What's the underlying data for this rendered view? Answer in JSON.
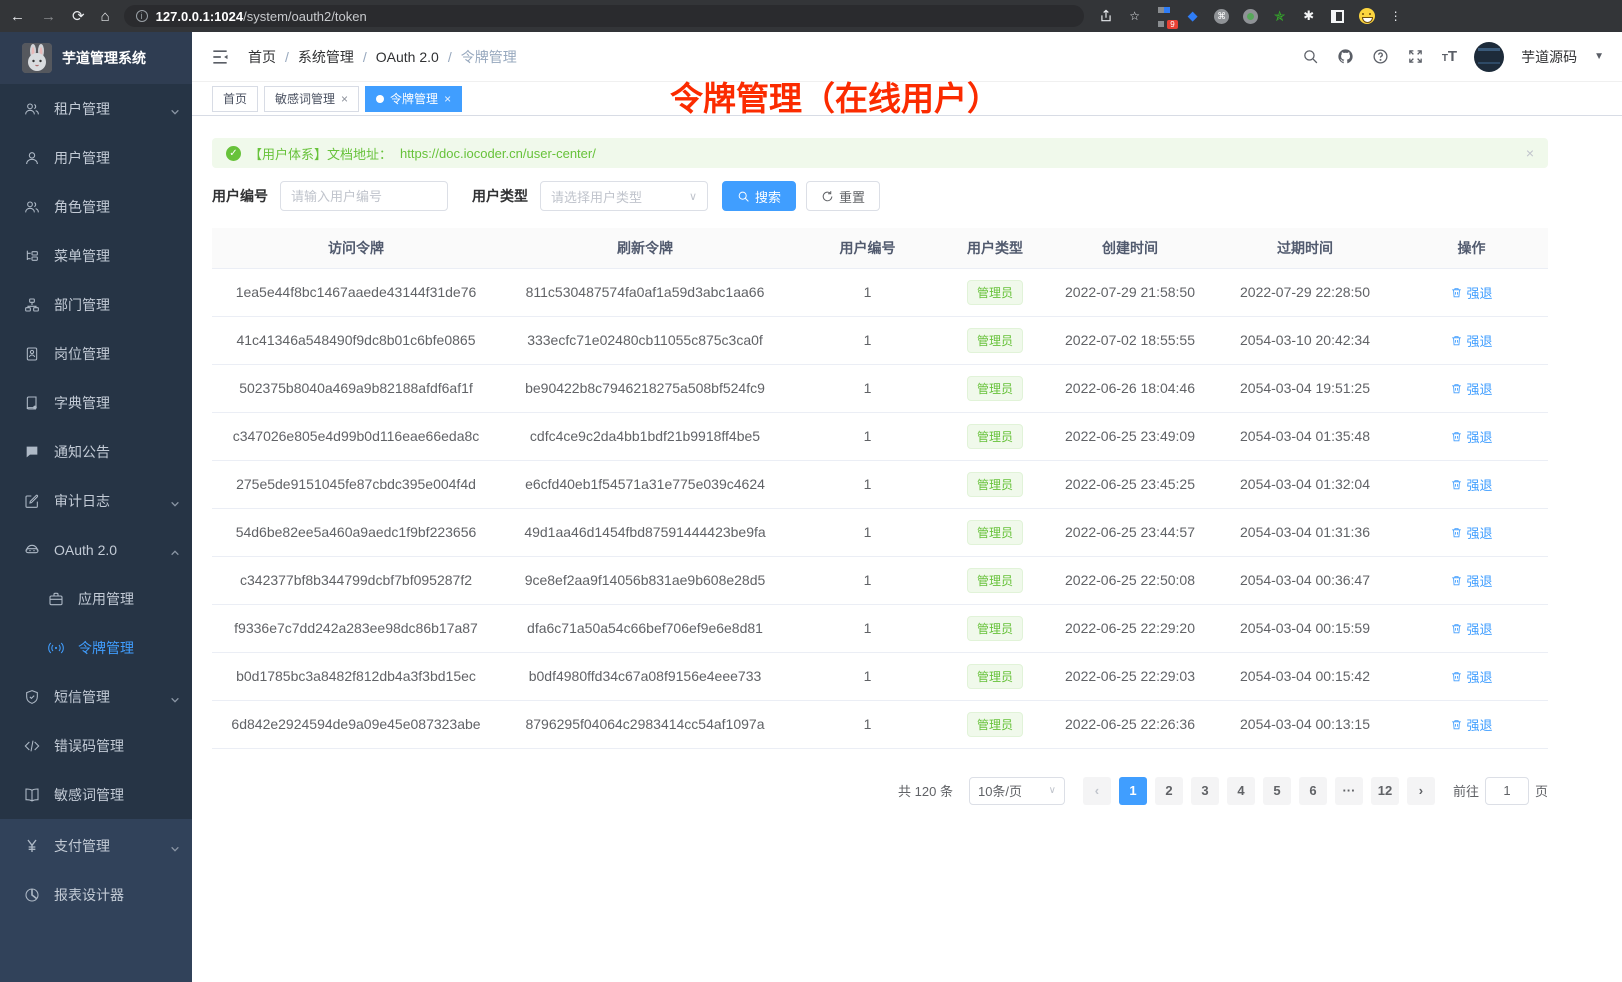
{
  "browser": {
    "url_host": "127.0.0.1:1024",
    "url_path": "/system/oauth2/token",
    "extension_badge": "9"
  },
  "app": {
    "title": "芋道管理系统"
  },
  "navbar": {
    "breadcrumb": [
      "首页",
      "系统管理",
      "OAuth 2.0",
      "令牌管理"
    ],
    "username": "芋道源码"
  },
  "tabs": [
    {
      "label": "首页",
      "closable": false,
      "active": false
    },
    {
      "label": "敏感词管理",
      "closable": true,
      "active": false
    },
    {
      "label": "令牌管理",
      "closable": true,
      "active": true
    }
  ],
  "annotation": "令牌管理（在线用户）",
  "sidebar": {
    "items": [
      {
        "name": "tenant",
        "label": "租户管理",
        "icon": "users",
        "children": true,
        "expanded": false,
        "section": "top"
      },
      {
        "name": "user",
        "label": "用户管理",
        "icon": "user",
        "children": false,
        "section": "top"
      },
      {
        "name": "role",
        "label": "角色管理",
        "icon": "users",
        "children": false,
        "section": "top"
      },
      {
        "name": "menu",
        "label": "菜单管理",
        "icon": "tree",
        "children": false,
        "section": "top"
      },
      {
        "name": "dept",
        "label": "部门管理",
        "icon": "org",
        "children": false,
        "section": "top"
      },
      {
        "name": "post",
        "label": "岗位管理",
        "icon": "badge",
        "children": false,
        "section": "top"
      },
      {
        "name": "dict",
        "label": "字典管理",
        "icon": "dict",
        "children": false,
        "section": "top"
      },
      {
        "name": "notice",
        "label": "通知公告",
        "icon": "chat",
        "children": false,
        "section": "top"
      },
      {
        "name": "audit-log",
        "label": "审计日志",
        "icon": "edit",
        "children": true,
        "expanded": false,
        "section": "top"
      },
      {
        "name": "oauth2",
        "label": "OAuth 2.0",
        "icon": "robot",
        "children": true,
        "expanded": true,
        "section": "top"
      },
      {
        "name": "oauth2-app",
        "label": "应用管理",
        "icon": "briefcase",
        "children": false,
        "sub": true,
        "section": "top"
      },
      {
        "name": "oauth2-token",
        "label": "令牌管理",
        "icon": "signal",
        "children": false,
        "sub": true,
        "active": true,
        "section": "top"
      },
      {
        "name": "sms",
        "label": "短信管理",
        "icon": "shield",
        "children": true,
        "expanded": false,
        "section": "top"
      },
      {
        "name": "errcode",
        "label": "错误码管理",
        "icon": "code",
        "children": false,
        "section": "top"
      },
      {
        "name": "sensitive",
        "label": "敏感词管理",
        "icon": "book",
        "children": false,
        "section": "top"
      },
      {
        "name": "pay",
        "label": "支付管理",
        "icon": "yen",
        "children": true,
        "expanded": false,
        "section": "light"
      },
      {
        "name": "report",
        "label": "报表设计器",
        "icon": "pie",
        "children": false,
        "section": "light"
      }
    ]
  },
  "alert": {
    "text": "【用户体系】文档地址：",
    "link": "https://doc.iocoder.cn/user-center/",
    "close": "×"
  },
  "filters": {
    "user_id_label": "用户编号",
    "user_id_placeholder": "请输入用户编号",
    "user_type_label": "用户类型",
    "user_type_placeholder": "请选择用户类型",
    "search_label": "搜索",
    "reset_label": "重置"
  },
  "table": {
    "headers": [
      "访问令牌",
      "刷新令牌",
      "用户编号",
      "用户类型",
      "创建时间",
      "过期时间",
      "操作"
    ],
    "action_label": "强退",
    "rows": [
      {
        "access": "1ea5e44f8bc1467aaede43144f31de76",
        "refresh": "811c530487574fa0af1a59d3abc1aa66",
        "user_id": "1",
        "user_type": "管理员",
        "created": "2022-07-29 21:58:50",
        "expires": "2022-07-29 22:28:50"
      },
      {
        "access": "41c41346a548490f9dc8b01c6bfe0865",
        "refresh": "333ecfc71e02480cb11055c875c3ca0f",
        "user_id": "1",
        "user_type": "管理员",
        "created": "2022-07-02 18:55:55",
        "expires": "2054-03-10 20:42:34"
      },
      {
        "access": "502375b8040a469a9b82188afdf6af1f",
        "refresh": "be90422b8c7946218275a508bf524fc9",
        "user_id": "1",
        "user_type": "管理员",
        "created": "2022-06-26 18:04:46",
        "expires": "2054-03-04 19:51:25"
      },
      {
        "access": "c347026e805e4d99b0d116eae66eda8c",
        "refresh": "cdfc4ce9c2da4bb1bdf21b9918ff4be5",
        "user_id": "1",
        "user_type": "管理员",
        "created": "2022-06-25 23:49:09",
        "expires": "2054-03-04 01:35:48"
      },
      {
        "access": "275e5de9151045fe87cbdc395e004f4d",
        "refresh": "e6cfd40eb1f54571a31e775e039c4624",
        "user_id": "1",
        "user_type": "管理员",
        "created": "2022-06-25 23:45:25",
        "expires": "2054-03-04 01:32:04"
      },
      {
        "access": "54d6be82ee5a460a9aedc1f9bf223656",
        "refresh": "49d1aa46d1454fbd87591444423be9fa",
        "user_id": "1",
        "user_type": "管理员",
        "created": "2022-06-25 23:44:57",
        "expires": "2054-03-04 01:31:36"
      },
      {
        "access": "c342377bf8b344799dcbf7bf095287f2",
        "refresh": "9ce8ef2aa9f14056b831ae9b608e28d5",
        "user_id": "1",
        "user_type": "管理员",
        "created": "2022-06-25 22:50:08",
        "expires": "2054-03-04 00:36:47"
      },
      {
        "access": "f9336e7c7dd242a283ee98dc86b17a87",
        "refresh": "dfa6c71a50a54c66bef706ef9e6e8d81",
        "user_id": "1",
        "user_type": "管理员",
        "created": "2022-06-25 22:29:20",
        "expires": "2054-03-04 00:15:59"
      },
      {
        "access": "b0d1785bc3a8482f812db4a3f3bd15ec",
        "refresh": "b0df4980ffd34c67a08f9156e4eee733",
        "user_id": "1",
        "user_type": "管理员",
        "created": "2022-06-25 22:29:03",
        "expires": "2054-03-04 00:15:42"
      },
      {
        "access": "6d842e2924594de9a09e45e087323abe",
        "refresh": "8796295f04064c2983414cc54af1097a",
        "user_id": "1",
        "user_type": "管理员",
        "created": "2022-06-25 22:26:36",
        "expires": "2054-03-04 00:13:15"
      }
    ]
  },
  "pagination": {
    "total": "共 120 条",
    "page_size": "10条/页",
    "pages": [
      "1",
      "2",
      "3",
      "4",
      "5",
      "6",
      "···",
      "12"
    ],
    "active_page": "1",
    "goto_label": "前往",
    "goto_value": "1",
    "goto_suffix": "页"
  },
  "colors": {
    "accent": "#409eff",
    "success": "#67c23a",
    "sidebar_bg": "#263445",
    "annotation_red": "#fb2b00"
  }
}
